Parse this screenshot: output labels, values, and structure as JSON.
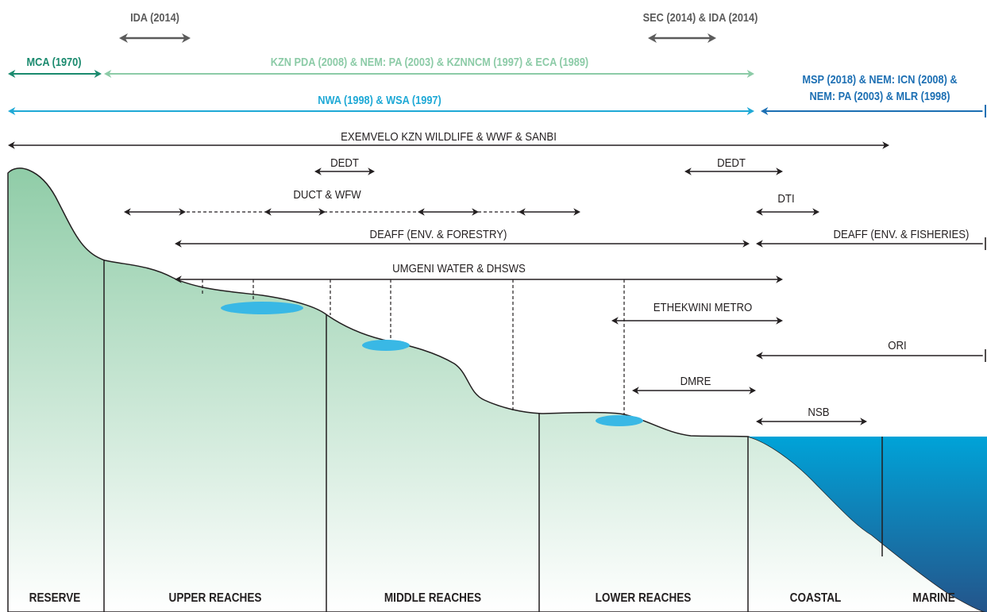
{
  "colors": {
    "legislation_teal": "#1a8a6e",
    "legislation_lightgreen": "#8ccba7",
    "legislation_cyan": "#1fa9d6",
    "legislation_blue": "#1c6fb3",
    "legislation_grey": "#5b5b5b",
    "agency_black": "#231f20",
    "land_top": "#8fcca7",
    "land_bottom": "#ffffff",
    "water_body": "#39b8e5",
    "sea_top": "#00a3d8",
    "sea_bottom": "#24548a"
  },
  "legislation": {
    "ida_upper": "IDA (2014)",
    "sec_ida": "SEC (2014) & IDA (2014)",
    "mca": "MCA (1970)",
    "kzn_pda": "KZN PDA (2008) & NEM: PA (2003) & KZNNCM (1997) & ECA (1989)",
    "nwa_wsa": "NWA (1998) & WSA (1997)",
    "msp_line1": "MSP (2018) & NEM: ICN (2008) &",
    "msp_line2": "NEM: PA (2003) & MLR (1998)"
  },
  "agencies": {
    "exemvelo": "EXEMVELO KZN WILDLIFE & WWF & SANBI",
    "dedt_upper": "DEDT",
    "dedt_lower": "DEDT",
    "duct_wfw": "DUCT & WFW",
    "dti": "DTI",
    "deaff_forestry": "DEAFF (ENV. & FORESTRY)",
    "deaff_fisheries": "DEAFF (ENV. & FISHERIES)",
    "umgeni": "UMGENI WATER & DHSWS",
    "ethekwini": "ETHEKWINI METRO",
    "ori": "ORI",
    "dmre": "DMRE",
    "nsb": "NSB"
  },
  "zones": {
    "reserve": "RESERVE",
    "upper": "UPPER REACHES",
    "middle": "MIDDLE REACHES",
    "lower": "LOWER REACHES",
    "coastal": "COASTAL",
    "marine": "MARINE"
  }
}
